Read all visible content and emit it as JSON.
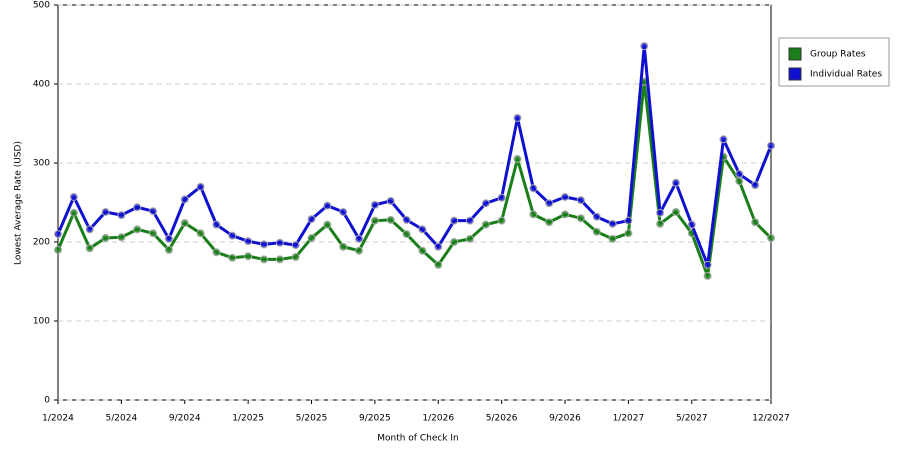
{
  "chart_data": {
    "type": "line",
    "x_label": "Month of Check In",
    "y_label": "Lowest Average Rate (USD)",
    "categories": [
      "1/2024",
      null,
      null,
      null,
      "5/2024",
      null,
      null,
      null,
      "9/2024",
      null,
      null,
      null,
      "1/2025",
      null,
      null,
      null,
      "5/2025",
      null,
      null,
      null,
      "9/2025",
      null,
      null,
      null,
      "1/2026",
      null,
      null,
      null,
      "5/2026",
      null,
      null,
      null,
      "9/2026",
      null,
      null,
      null,
      "1/2027",
      null,
      null,
      null,
      "5/2027",
      null,
      null,
      null,
      null,
      "12/2027"
    ],
    "series": [
      {
        "name": "Group Rates",
        "color": "#1a7f1a",
        "values": [
          190,
          237,
          192,
          205,
          206,
          216,
          211,
          190,
          224,
          211,
          187,
          180,
          182,
          178,
          178,
          181,
          205,
          222,
          194,
          189,
          227,
          228,
          210,
          189,
          171,
          200,
          204,
          222,
          227,
          305,
          235,
          225,
          235,
          230,
          213,
          204,
          211,
          403,
          223,
          238,
          211,
          157,
          308,
          277,
          225,
          205
        ]
      },
      {
        "name": "Individual Rates",
        "color": "#1010d0",
        "values": [
          210,
          257,
          216,
          238,
          234,
          244,
          239,
          204,
          254,
          270,
          222,
          208,
          201,
          197,
          199,
          196,
          229,
          246,
          238,
          204,
          247,
          252,
          228,
          216,
          194,
          227,
          227,
          249,
          256,
          357,
          268,
          249,
          257,
          253,
          232,
          223,
          227,
          448,
          237,
          275,
          222,
          171,
          330,
          286,
          272,
          322
        ]
      }
    ],
    "ylim": [
      0,
      500
    ],
    "yticks": [
      0,
      100,
      200,
      300,
      400,
      500
    ],
    "grid": true
  }
}
